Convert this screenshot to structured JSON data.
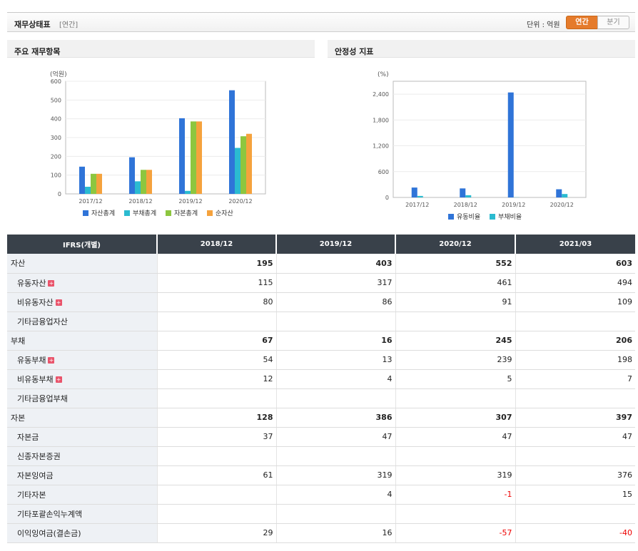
{
  "header": {
    "title": "재무상태표",
    "period": "[연간]",
    "unit_label": "단위 : 억원",
    "toggle_annual": "연간",
    "toggle_quarter": "분기"
  },
  "panel1": {
    "title": "주요 재무항목"
  },
  "panel2": {
    "title": "안정성 지표"
  },
  "chart_data": [
    {
      "type": "bar",
      "ylabel": "(억원)",
      "ylim": [
        0,
        600
      ],
      "yticks": [
        "0",
        "100",
        "200",
        "300",
        "400",
        "500",
        "600"
      ],
      "categories": [
        "2017/12",
        "2018/12",
        "2019/12",
        "2020/12"
      ],
      "series": [
        {
          "name": "자산총계",
          "color": "#2f74d8",
          "values": [
            145,
            195,
            403,
            552
          ]
        },
        {
          "name": "부채총계",
          "color": "#2bbbd0",
          "values": [
            38,
            67,
            16,
            245
          ]
        },
        {
          "name": "자본총계",
          "color": "#8dc63f",
          "values": [
            107,
            128,
            386,
            307
          ]
        },
        {
          "name": "순자산",
          "color": "#f5a23d",
          "values": [
            107,
            128,
            386,
            320
          ]
        }
      ],
      "legend_position": "bottom"
    },
    {
      "type": "bar",
      "ylabel": "(%)",
      "ylim": [
        0,
        2700
      ],
      "yticks": [
        "0",
        "600",
        "1,200",
        "1,800",
        "2,400"
      ],
      "ytick_values": [
        0,
        600,
        1200,
        1800,
        2400
      ],
      "categories": [
        "2017/12",
        "2018/12",
        "2019/12",
        "2020/12"
      ],
      "series": [
        {
          "name": "유동비율",
          "color": "#2f74d8",
          "values": [
            230,
            210,
            2440,
            190
          ]
        },
        {
          "name": "부채비율",
          "color": "#2bbbd0",
          "values": [
            35,
            52,
            4,
            80
          ]
        }
      ],
      "legend_position": "bottom"
    }
  ],
  "table": {
    "header": [
      "IFRS(개별)",
      "2018/12",
      "2019/12",
      "2020/12",
      "2021/03"
    ],
    "rows": [
      {
        "label": "자산",
        "indent": false,
        "bold": true,
        "plus": false,
        "values": [
          "195",
          "403",
          "552",
          "603"
        ]
      },
      {
        "label": "유동자산",
        "indent": true,
        "bold": false,
        "plus": true,
        "values": [
          "115",
          "317",
          "461",
          "494"
        ]
      },
      {
        "label": "비유동자산",
        "indent": true,
        "bold": false,
        "plus": true,
        "values": [
          "80",
          "86",
          "91",
          "109"
        ]
      },
      {
        "label": "기타금융업자산",
        "indent": true,
        "bold": false,
        "plus": false,
        "values": [
          "",
          "",
          "",
          ""
        ]
      },
      {
        "label": "부채",
        "indent": false,
        "bold": true,
        "plus": false,
        "values": [
          "67",
          "16",
          "245",
          "206"
        ]
      },
      {
        "label": "유동부채",
        "indent": true,
        "bold": false,
        "plus": true,
        "values": [
          "54",
          "13",
          "239",
          "198"
        ]
      },
      {
        "label": "비유동부채",
        "indent": true,
        "bold": false,
        "plus": true,
        "values": [
          "12",
          "4",
          "5",
          "7"
        ]
      },
      {
        "label": "기타금융업부채",
        "indent": true,
        "bold": false,
        "plus": false,
        "values": [
          "",
          "",
          "",
          ""
        ]
      },
      {
        "label": "자본",
        "indent": false,
        "bold": true,
        "plus": false,
        "values": [
          "128",
          "386",
          "307",
          "397"
        ]
      },
      {
        "label": "자본금",
        "indent": true,
        "bold": false,
        "plus": false,
        "values": [
          "37",
          "47",
          "47",
          "47"
        ]
      },
      {
        "label": "신종자본증권",
        "indent": true,
        "bold": false,
        "plus": false,
        "values": [
          "",
          "",
          "",
          ""
        ]
      },
      {
        "label": "자본잉여금",
        "indent": true,
        "bold": false,
        "plus": false,
        "values": [
          "61",
          "319",
          "319",
          "376"
        ]
      },
      {
        "label": "기타자본",
        "indent": true,
        "bold": false,
        "plus": false,
        "values": [
          "",
          "4",
          "-1",
          "15"
        ]
      },
      {
        "label": "기타포괄손익누계액",
        "indent": true,
        "bold": false,
        "plus": false,
        "values": [
          "",
          "",
          "",
          ""
        ]
      },
      {
        "label": "이익잉여금(결손금)",
        "indent": true,
        "bold": false,
        "plus": false,
        "values": [
          "29",
          "16",
          "-57",
          "-40"
        ]
      }
    ]
  }
}
